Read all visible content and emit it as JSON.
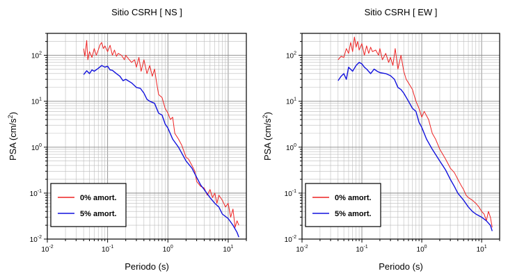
{
  "chart_data": [
    {
      "type": "line",
      "title": "Sitio CSRH [ NS ]",
      "xlabel": "Periodo (s)",
      "ylabel_base": "PSA (cm/s",
      "ylabel_sup": "2",
      "ylabel_end": ")",
      "xscale": "log",
      "yscale": "log",
      "xlim": [
        0.01,
        20
      ],
      "ylim": [
        0.01,
        300
      ],
      "grid": true,
      "legend": "bottom-left",
      "x_ticks": [
        {
          "base": "10",
          "exp": "-2",
          "value": 0.01
        },
        {
          "base": "10",
          "exp": "-1",
          "value": 0.1
        },
        {
          "base": "10",
          "exp": "0",
          "value": 1
        },
        {
          "base": "10",
          "exp": "1",
          "value": 10
        }
      ],
      "y_ticks": [
        {
          "base": "10",
          "exp": "-2",
          "value": 0.01
        },
        {
          "base": "10",
          "exp": "-1",
          "value": 0.1
        },
        {
          "base": "10",
          "exp": "0",
          "value": 1
        },
        {
          "base": "10",
          "exp": "1",
          "value": 10
        },
        {
          "base": "10",
          "exp": "2",
          "value": 100
        }
      ],
      "series": [
        {
          "name": "0% amort.",
          "color": "#ee2222",
          "x": [
            0.04,
            0.042,
            0.045,
            0.047,
            0.05,
            0.055,
            0.06,
            0.065,
            0.07,
            0.075,
            0.08,
            0.085,
            0.09,
            0.1,
            0.11,
            0.12,
            0.13,
            0.14,
            0.15,
            0.17,
            0.19,
            0.2,
            0.22,
            0.25,
            0.28,
            0.3,
            0.33,
            0.36,
            0.4,
            0.45,
            0.5,
            0.55,
            0.6,
            0.65,
            0.7,
            0.8,
            0.9,
            1.0,
            1.1,
            1.2,
            1.3,
            1.5,
            1.7,
            2.0,
            2.2,
            2.5,
            2.8,
            3.0,
            3.5,
            4.0,
            4.5,
            5.0,
            5.5,
            6.0,
            6.5,
            7.0,
            8.0,
            9.0,
            10.0,
            11.0,
            12.0,
            13.0,
            14.0,
            15.0
          ],
          "y": [
            140,
            95,
            210,
            80,
            120,
            90,
            140,
            100,
            130,
            170,
            190,
            140,
            160,
            120,
            165,
            100,
            130,
            95,
            110,
            100,
            80,
            100,
            85,
            70,
            80,
            55,
            90,
            45,
            80,
            40,
            60,
            35,
            50,
            25,
            14,
            12,
            7,
            5.5,
            4,
            4.5,
            2,
            1.5,
            1.1,
            0.6,
            0.55,
            0.4,
            0.3,
            0.18,
            0.14,
            0.13,
            0.09,
            0.12,
            0.08,
            0.1,
            0.06,
            0.09,
            0.07,
            0.05,
            0.06,
            0.03,
            0.045,
            0.018,
            0.025,
            0.02
          ]
        },
        {
          "name": "5% amort.",
          "color": "#1111dd",
          "x": [
            0.04,
            0.045,
            0.05,
            0.055,
            0.06,
            0.07,
            0.08,
            0.09,
            0.1,
            0.11,
            0.12,
            0.14,
            0.16,
            0.18,
            0.2,
            0.25,
            0.3,
            0.35,
            0.4,
            0.45,
            0.5,
            0.6,
            0.7,
            0.8,
            0.9,
            1.0,
            1.2,
            1.5,
            2.0,
            2.5,
            3.0,
            3.5,
            4.0,
            5.0,
            6.0,
            7.0,
            8.0,
            10.0,
            12.0,
            14.0,
            15.0
          ],
          "y": [
            38,
            46,
            40,
            48,
            45,
            52,
            60,
            55,
            58,
            48,
            47,
            40,
            35,
            28,
            30,
            25,
            20,
            19,
            15,
            11,
            10,
            9,
            5.5,
            5,
            3.2,
            2.6,
            1.5,
            1.0,
            0.5,
            0.35,
            0.22,
            0.15,
            0.12,
            0.08,
            0.06,
            0.05,
            0.035,
            0.028,
            0.02,
            0.014,
            0.011
          ]
        }
      ]
    },
    {
      "type": "line",
      "title": "Sitio CSRH [ EW ]",
      "xlabel": "Periodo (s)",
      "ylabel_base": "PSA (cm/s",
      "ylabel_sup": "2",
      "ylabel_end": ")",
      "xscale": "log",
      "yscale": "log",
      "xlim": [
        0.01,
        20
      ],
      "ylim": [
        0.01,
        300
      ],
      "grid": true,
      "legend": "bottom-left",
      "x_ticks": [
        {
          "base": "10",
          "exp": "-2",
          "value": 0.01
        },
        {
          "base": "10",
          "exp": "-1",
          "value": 0.1
        },
        {
          "base": "10",
          "exp": "0",
          "value": 1
        },
        {
          "base": "10",
          "exp": "1",
          "value": 10
        }
      ],
      "y_ticks": [
        {
          "base": "10",
          "exp": "-2",
          "value": 0.01
        },
        {
          "base": "10",
          "exp": "-1",
          "value": 0.1
        },
        {
          "base": "10",
          "exp": "0",
          "value": 1
        },
        {
          "base": "10",
          "exp": "1",
          "value": 10
        },
        {
          "base": "10",
          "exp": "2",
          "value": 100
        }
      ],
      "series": [
        {
          "name": "0% amort.",
          "color": "#ee2222",
          "x": [
            0.04,
            0.045,
            0.05,
            0.055,
            0.06,
            0.065,
            0.07,
            0.075,
            0.08,
            0.085,
            0.09,
            0.1,
            0.11,
            0.12,
            0.13,
            0.14,
            0.15,
            0.17,
            0.19,
            0.2,
            0.22,
            0.25,
            0.28,
            0.3,
            0.33,
            0.36,
            0.4,
            0.45,
            0.5,
            0.55,
            0.6,
            0.7,
            0.8,
            0.9,
            1.0,
            1.1,
            1.3,
            1.5,
            1.7,
            2.0,
            2.5,
            3.0,
            3.5,
            4.0,
            4.5,
            5.0,
            5.5,
            6.0,
            7.0,
            8.0,
            9.0,
            10.0,
            11.0,
            12.0,
            13.0,
            14.0,
            15.0
          ],
          "y": [
            80,
            95,
            90,
            140,
            110,
            190,
            120,
            250,
            150,
            200,
            130,
            180,
            100,
            160,
            110,
            150,
            120,
            130,
            100,
            140,
            80,
            110,
            70,
            90,
            60,
            140,
            50,
            100,
            45,
            30,
            25,
            18,
            10,
            7,
            4.5,
            6,
            4,
            2,
            1.5,
            0.9,
            0.55,
            0.35,
            0.28,
            0.2,
            0.15,
            0.12,
            0.09,
            0.08,
            0.07,
            0.06,
            0.05,
            0.04,
            0.035,
            0.025,
            0.04,
            0.03,
            0.018
          ]
        },
        {
          "name": "5% amort.",
          "color": "#1111dd",
          "x": [
            0.04,
            0.045,
            0.05,
            0.055,
            0.06,
            0.07,
            0.08,
            0.09,
            0.1,
            0.11,
            0.12,
            0.14,
            0.16,
            0.18,
            0.2,
            0.25,
            0.3,
            0.35,
            0.4,
            0.45,
            0.5,
            0.6,
            0.7,
            0.8,
            0.9,
            1.0,
            1.2,
            1.5,
            2.0,
            2.5,
            3.0,
            3.5,
            4.0,
            5.0,
            6.0,
            7.0,
            8.0,
            10.0,
            12.0,
            14.0,
            15.0
          ],
          "y": [
            28,
            35,
            40,
            30,
            55,
            45,
            60,
            70,
            65,
            55,
            50,
            40,
            50,
            45,
            42,
            40,
            36,
            30,
            20,
            18,
            15,
            10,
            7,
            6,
            3.5,
            2.7,
            1.5,
            0.9,
            0.5,
            0.32,
            0.2,
            0.14,
            0.1,
            0.07,
            0.05,
            0.04,
            0.035,
            0.03,
            0.025,
            0.02,
            0.015
          ]
        }
      ]
    }
  ]
}
